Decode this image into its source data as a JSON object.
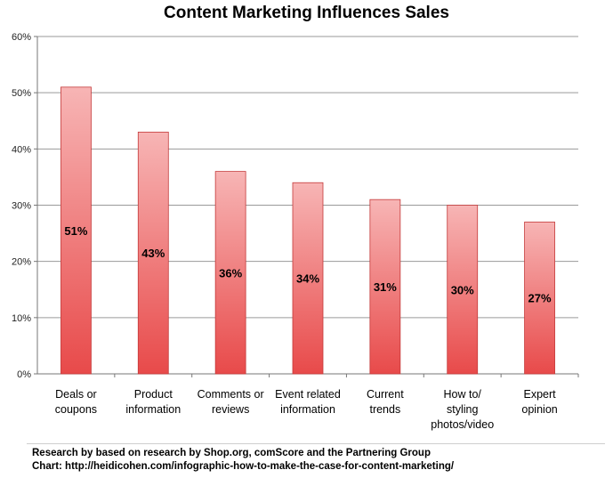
{
  "chart_data": {
    "type": "bar",
    "title": "Content Marketing Influences Sales",
    "categories": [
      [
        "Deals or",
        "coupons"
      ],
      [
        "Product",
        "information"
      ],
      [
        "Comments or",
        "reviews"
      ],
      [
        "Event related",
        "information"
      ],
      [
        "Current",
        "trends"
      ],
      [
        "How to/",
        "styling",
        "photos/video"
      ],
      [
        "Expert",
        "opinion"
      ]
    ],
    "values": [
      51,
      43,
      36,
      34,
      31,
      30,
      27
    ],
    "data_labels": [
      "51%",
      "43%",
      "36%",
      "34%",
      "31%",
      "30%",
      "27%"
    ],
    "y_ticks": [
      "0%",
      "10%",
      "20%",
      "30%",
      "40%",
      "50%",
      "60%"
    ],
    "ylim": [
      0,
      60
    ],
    "grid": true,
    "bar_color_top": "#f7b5b5",
    "bar_color_bottom": "#e84a4a",
    "bar_edge_color": "#c43a3a"
  },
  "footer": {
    "source_line1": "Research by based on research by Shop.org, comScore and the Partnering Group",
    "source_line2": "Chart: http://heidicohen.com/infographic-how-to-make-the-case-for-content-marketing/"
  }
}
